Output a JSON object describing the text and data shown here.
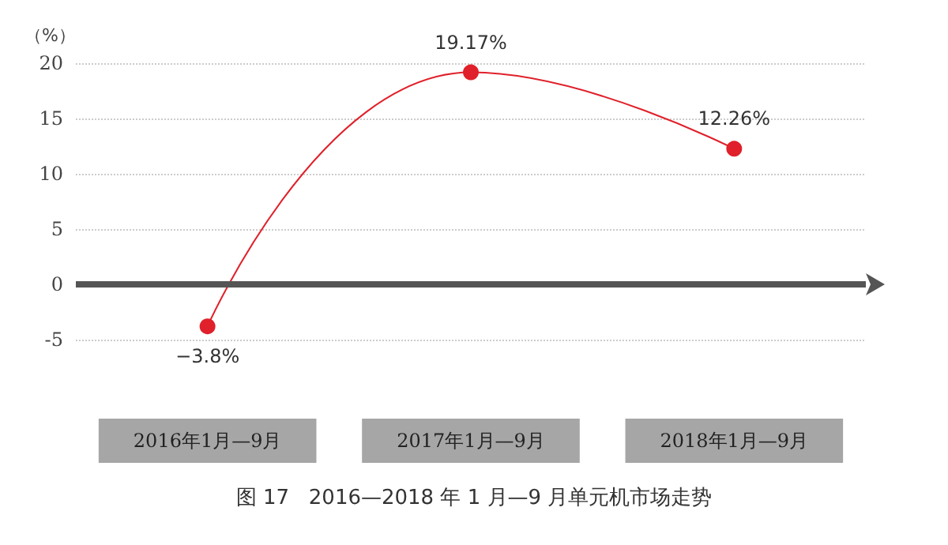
{
  "chart_data": {
    "type": "line",
    "title": "图 17   2016—2018 年 1 月—9 月单元机市场走势",
    "ylabel": "（%）",
    "categories": [
      "2016年1月—9月",
      "2017年1月—9月",
      "2018年1月—9月"
    ],
    "series": [
      {
        "color": "#e0202a",
        "values": [
          -3.8,
          19.17,
          12.26
        ],
        "value_labels": [
          "−3.8%",
          "19.17%",
          "12.26%"
        ]
      }
    ],
    "ylim": [
      -5,
      20
    ],
    "yticks": [
      -5,
      0,
      5,
      10,
      15,
      20
    ],
    "ref_lines": [
      {
        "axis": "y",
        "value": 0,
        "color": "#555555"
      }
    ],
    "grid": "y",
    "marker": "circle",
    "line_style": "solid"
  }
}
